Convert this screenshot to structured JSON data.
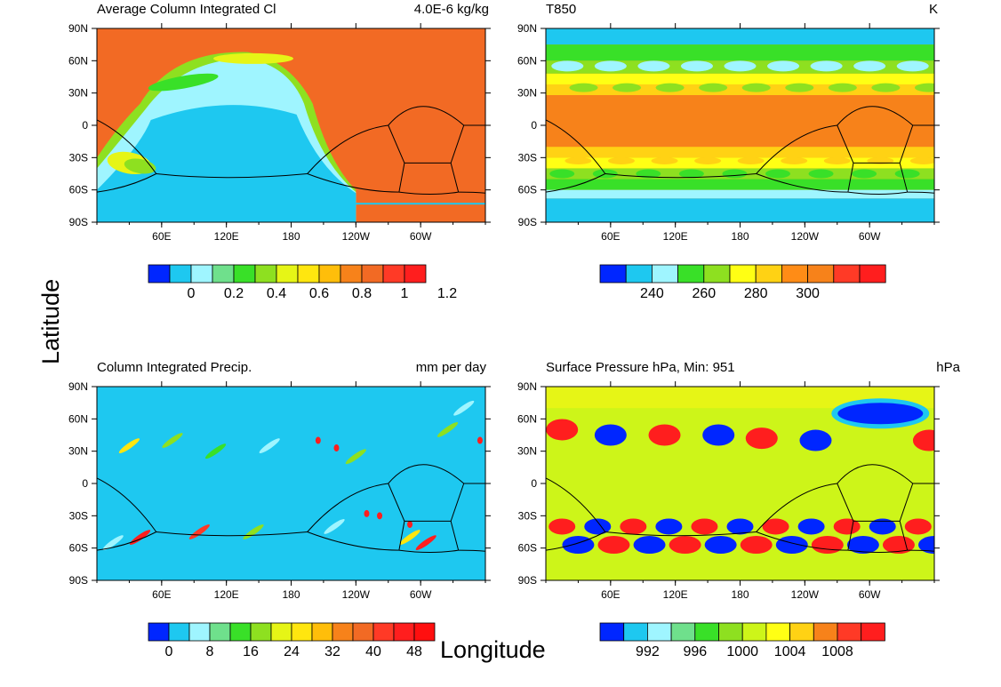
{
  "chart_data": [
    {
      "type": "heatmap",
      "id": "p1",
      "title": "Average Column Integrated Cl",
      "units": "4.0E-6 kg/kg",
      "y_ticks": [
        "90N",
        "60N",
        "30N",
        "0",
        "30S",
        "60S",
        "90S"
      ],
      "x_ticks": [
        "60E",
        "120E",
        "180",
        "120W",
        "60W"
      ],
      "colorbar": {
        "colors": [
          "#0026ff",
          "#1ec8f0",
          "#9ff5ff",
          "#6fe08c",
          "#39e028",
          "#8ee020",
          "#e6f516",
          "#ffe60f",
          "#ffbe0a",
          "#f7821a",
          "#f26a24",
          "#ff3a26",
          "#ff1e1e"
        ],
        "labels": [
          "0",
          "0.2",
          "0.4",
          "0.6",
          "0.8",
          "1",
          "1.2"
        ],
        "label_boundary_index": [
          2,
          4,
          6,
          8,
          10,
          12,
          14
        ]
      },
      "background": "#f26a24"
    },
    {
      "type": "heatmap",
      "id": "p2",
      "title": "T850",
      "units": "K",
      "y_ticks": [
        "90N",
        "60N",
        "30N",
        "0",
        "30S",
        "60S",
        "90S"
      ],
      "x_ticks": [
        "60E",
        "120E",
        "180",
        "120W",
        "60W"
      ],
      "colorbar": {
        "colors": [
          "#0026ff",
          "#1ec8f0",
          "#9ff5ff",
          "#39e028",
          "#8ee020",
          "#ffff14",
          "#ffd214",
          "#ff8c16",
          "#f7821a",
          "#ff3a26",
          "#ff1e1e"
        ],
        "labels": [
          "240",
          "260",
          "280",
          "300"
        ],
        "label_boundary_index": [
          2,
          4,
          6,
          8
        ]
      },
      "background": "#f7821a"
    },
    {
      "type": "heatmap",
      "id": "p3",
      "title": "Column Integrated Precip.",
      "units": "mm per day",
      "y_ticks": [
        "90N",
        "60N",
        "30N",
        "0",
        "30S",
        "60S",
        "90S"
      ],
      "x_ticks": [
        "60E",
        "120E",
        "180",
        "120W",
        "60W"
      ],
      "colorbar": {
        "colors": [
          "#0026ff",
          "#1ec8f0",
          "#9ff5ff",
          "#6fe08c",
          "#39e028",
          "#8ee020",
          "#e6f516",
          "#ffe60f",
          "#ffbe0a",
          "#f7821a",
          "#f26a24",
          "#ff3a26",
          "#ff1e1e",
          "#ff0f0f"
        ],
        "labels": [
          "0",
          "8",
          "16",
          "24",
          "32",
          "40",
          "48"
        ],
        "label_boundary_index": [
          1,
          3,
          5,
          7,
          9,
          11,
          13
        ]
      },
      "background": "#1ec8f0"
    },
    {
      "type": "heatmap",
      "id": "p4",
      "title": "Surface Pressure hPa, Min: 951",
      "units": "hPa",
      "y_ticks": [
        "90N",
        "60N",
        "30N",
        "0",
        "30S",
        "60S",
        "90S"
      ],
      "x_ticks": [
        "60E",
        "120E",
        "180",
        "120W",
        "60W"
      ],
      "colorbar": {
        "colors": [
          "#0026ff",
          "#1ec8f0",
          "#9ff5ff",
          "#6fe08c",
          "#39e028",
          "#8ee020",
          "#cdf519",
          "#ffff14",
          "#ffd214",
          "#f7821a",
          "#ff3a26",
          "#ff1e1e"
        ],
        "labels": [
          "992",
          "996",
          "1000",
          "1004",
          "1008"
        ],
        "label_boundary_index": [
          2,
          4,
          6,
          8,
          10
        ]
      },
      "background": "#cdf519"
    }
  ],
  "figure": {
    "ylabel": "Latitude",
    "xlabel": "Longitude"
  }
}
